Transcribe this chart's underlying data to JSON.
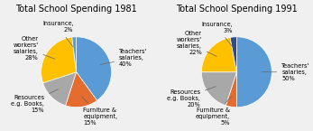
{
  "chart1": {
    "title": "Total School Spending 1981",
    "values": [
      40,
      15,
      15,
      28,
      2
    ],
    "colors": [
      "#5B9BD5",
      "#E36C2E",
      "#A8A8A8",
      "#FFC000",
      "#5B9BD5"
    ],
    "startangle": 90,
    "counterclock": false,
    "labels": [
      {
        "text": "Teachers'\nsalaries,\n40%",
        "side": "right"
      },
      {
        "text": "Furniture &\nequipment,\n15%",
        "side": "right"
      },
      {
        "text": "Resources\ne.g. Books,\n15%",
        "side": "left"
      },
      {
        "text": "Other\nworkers'\nsalaries,\n28%",
        "side": "left"
      },
      {
        "text": "Insurance,\n2%",
        "side": "left"
      }
    ]
  },
  "chart2": {
    "title": "Total School Spending 1991",
    "values": [
      50,
      5,
      20,
      22,
      3
    ],
    "colors": [
      "#5B9BD5",
      "#E36C2E",
      "#A8A8A8",
      "#FFC000",
      "#2E4B8E"
    ],
    "startangle": 90,
    "counterclock": false,
    "labels": [
      {
        "text": "Teachers'\nsalaries,\n50%",
        "side": "right"
      },
      {
        "text": "Furniture &\nequipment,\n5%",
        "side": "left"
      },
      {
        "text": "Resources\ne.g. Books,\n20%",
        "side": "left"
      },
      {
        "text": "Other\nworkers'\nsalaries,\n22%",
        "side": "left"
      },
      {
        "text": "Insurance,\n3%",
        "side": "left"
      }
    ]
  },
  "bg_color": "#F0F0F0",
  "title_fontsize": 7.0,
  "label_fontsize": 4.8
}
